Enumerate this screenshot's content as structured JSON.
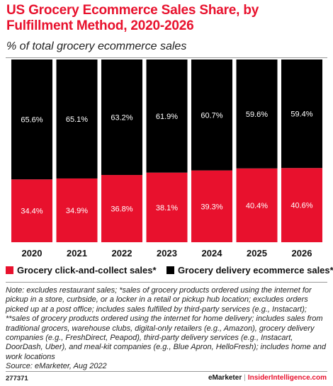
{
  "header": {
    "title": "US Grocery Ecommerce Sales Share, by Fulfillment Method, 2020-2026",
    "subtitle": "% of total grocery ecommerce sales"
  },
  "chart_data": {
    "type": "bar",
    "stacked": true,
    "categories": [
      "2020",
      "2021",
      "2022",
      "2023",
      "2024",
      "2025",
      "2026"
    ],
    "series": [
      {
        "name": "Grocery click-and-collect sales*",
        "color": "#e8112d",
        "values": [
          34.4,
          34.9,
          36.8,
          38.1,
          39.3,
          40.4,
          40.6
        ],
        "labels": [
          "34.4%",
          "34.9%",
          "36.8%",
          "38.1%",
          "39.3%",
          "40.4%",
          "40.6%"
        ]
      },
      {
        "name": "Grocery delivery ecommerce sales**",
        "color": "#000000",
        "values": [
          65.6,
          65.1,
          63.2,
          61.9,
          60.7,
          59.6,
          59.4
        ],
        "labels": [
          "65.6%",
          "65.1%",
          "63.2%",
          "61.9%",
          "60.7%",
          "59.6%",
          "59.4%"
        ]
      }
    ],
    "ylim": [
      0,
      100
    ],
    "legend_position": "bottom",
    "grid": false
  },
  "notes": {
    "text": "Note: excludes restaurant sales; *sales of grocery products ordered using the internet for pickup in a store, curbside, or a locker in a retail or pickup hub location; excludes orders picked up at a post office; includes sales fulfilled by third-party services (e.g., Instacart); **sales of grocery products ordered using the internet for home delivery; includes sales from traditional grocers, warehouse clubs, digital-only retailers (e.g., Amazon), grocery delivery companies (e.g., FreshDirect, Peapod), third-party delivery services (e.g., Instacart, DoorDash, Uber), and meal-kit companies (e.g., Blue Apron, HelloFresh); includes home and work locations",
    "source": "Source: eMarketer, Aug 2022"
  },
  "footer": {
    "chart_id": "277371",
    "brand": "eMarketer",
    "separator": "|",
    "brand2": "InsiderIntelligence.com"
  }
}
